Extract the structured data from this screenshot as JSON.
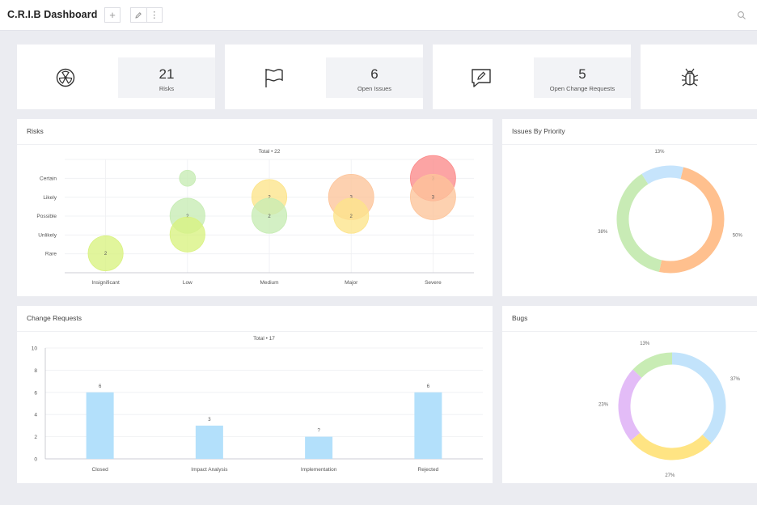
{
  "header": {
    "title": "C.R.I.B Dashboard",
    "add_symbol": "+",
    "more_symbol": "⋮"
  },
  "kpis": [
    {
      "value": "21",
      "label": "Risks",
      "icon": "radiation-icon"
    },
    {
      "value": "6",
      "label": "Open Issues",
      "icon": "flag-icon"
    },
    {
      "value": "5",
      "label": "Open Change Requests",
      "icon": "edit-message-icon"
    },
    {
      "value": "",
      "label": "",
      "icon": "bug-icon"
    }
  ],
  "risks": {
    "title": "Risks",
    "chart_data": {
      "type": "scatter",
      "subtitle": "Total • 22",
      "x_categories": [
        "Insignificant",
        "Low",
        "Medium",
        "Major",
        "Severe"
      ],
      "y_categories": [
        "Rare",
        "Unlikely",
        "Possible",
        "Likely",
        "Certain"
      ],
      "points": [
        {
          "x": "Insignificant",
          "y": "Rare",
          "value": 2,
          "label": "2",
          "color": "#d9f280"
        },
        {
          "x": "Low",
          "y": "Certain",
          "value": 1,
          "label": "",
          "color": "#c6ecb3"
        },
        {
          "x": "Low",
          "y": "Possible",
          "value": 2,
          "label": "2",
          "color": "#c6ecb3"
        },
        {
          "x": "Low",
          "y": "Unlikely",
          "value": 2,
          "label": "",
          "color": "#d9f280"
        },
        {
          "x": "Medium",
          "y": "Likely",
          "value": 2,
          "label": "2",
          "color": "#fde48a"
        },
        {
          "x": "Medium",
          "y": "Possible",
          "value": 2,
          "label": "2",
          "color": "#c6ecb3"
        },
        {
          "x": "Major",
          "y": "Likely",
          "value": 3,
          "label": "3",
          "color": "#fdc49a"
        },
        {
          "x": "Major",
          "y": "Possible",
          "value": 2,
          "label": "2",
          "color": "#fde48a"
        },
        {
          "x": "Severe",
          "y": "Certain",
          "value": 3,
          "label": "3",
          "color": "#fb8a8a"
        },
        {
          "x": "Severe",
          "y": "Likely",
          "value": 3,
          "label": "3",
          "color": "#fdc49a"
        }
      ]
    }
  },
  "issues": {
    "title": "Issues By Priority",
    "chart_data": {
      "type": "pie",
      "donut": true,
      "slices": [
        {
          "value": 50,
          "label": "50%",
          "color": "#ffc08e"
        },
        {
          "value": 38,
          "label": "38%",
          "color": "#c8ebb5"
        },
        {
          "value": 13,
          "label": "13%",
          "color": "#c6e4fc"
        }
      ]
    }
  },
  "change_requests": {
    "title": "Change Requests",
    "chart_data": {
      "type": "bar",
      "subtitle": "Total • 17",
      "categories": [
        "Closed",
        "Impact Analysis",
        "Implementation",
        "Rejected"
      ],
      "values": [
        6,
        3,
        2,
        6
      ],
      "value_labels": [
        "6",
        "3",
        "?",
        "6"
      ],
      "ylim": [
        0,
        10
      ],
      "yticks": [
        0,
        2,
        4,
        6,
        8,
        10
      ],
      "bar_color": "#b3e0fb"
    }
  },
  "bugs": {
    "title": "Bugs",
    "chart_data": {
      "type": "pie",
      "donut": true,
      "slices": [
        {
          "value": 37,
          "label": "37%",
          "color": "#c2e3fb"
        },
        {
          "value": 27,
          "label": "27%",
          "color": "#ffe483"
        },
        {
          "value": 23,
          "label": "23%",
          "color": "#e3bcf7"
        },
        {
          "value": 13,
          "label": "13%",
          "color": "#c8ecb4"
        }
      ]
    }
  }
}
